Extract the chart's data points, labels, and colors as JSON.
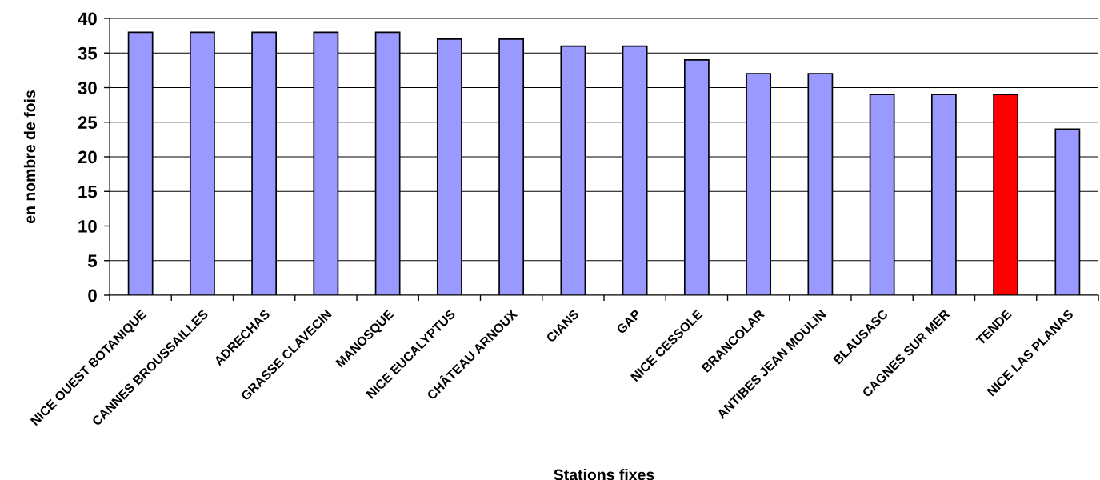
{
  "chart_data": {
    "type": "bar",
    "categories": [
      "NICE OUEST BOTANIQUE",
      "CANNES BROUSSAILLES",
      "ADRECHAS",
      "GRASSE CLAVECIN",
      "MANOSQUE",
      "NICE EUCALYPTUS",
      "CHÂTEAU ARNOUX",
      "CIANS",
      "GAP",
      "NICE CESSOLE",
      "BRANCOLAR",
      "ANTIBES JEAN MOULIN",
      "BLAUSASC",
      "CAGNES SUR MER",
      "TENDE",
      "NICE LAS PLANAS"
    ],
    "values": [
      38,
      38,
      38,
      38,
      38,
      37,
      37,
      36,
      36,
      34,
      32,
      32,
      29,
      29,
      29,
      24
    ],
    "colors": [
      "#9999ff",
      "#9999ff",
      "#9999ff",
      "#9999ff",
      "#9999ff",
      "#9999ff",
      "#9999ff",
      "#9999ff",
      "#9999ff",
      "#9999ff",
      "#9999ff",
      "#9999ff",
      "#9999ff",
      "#9999ff",
      "#ff0000",
      "#9999ff"
    ],
    "xlabel": "Stations fixes",
    "ylabel": "en nombre de fois",
    "ylim": [
      0,
      40
    ],
    "yticks": [
      0,
      5,
      10,
      15,
      20,
      25,
      30,
      35,
      40
    ],
    "grid": "y"
  }
}
